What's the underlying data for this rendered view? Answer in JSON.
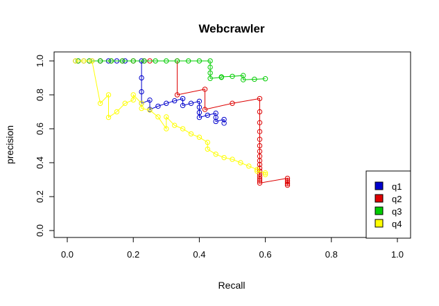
{
  "chart_data": {
    "type": "line",
    "title": "Webcrawler",
    "xlabel": "Recall",
    "ylabel": "precision",
    "xlim": [
      0,
      1
    ],
    "ylim": [
      0,
      1
    ],
    "xticks": [
      "0.0",
      "0.2",
      "0.4",
      "0.6",
      "0.8",
      "1.0"
    ],
    "yticks": [
      "0.0",
      "0.2",
      "0.4",
      "0.6",
      "0.8",
      "1.0"
    ],
    "grid": false,
    "legend_position": "bottom-right",
    "series": [
      {
        "name": "q1",
        "color": "#0000CC",
        "points": [
          [
            0.025,
            1.0
          ],
          [
            0.05,
            1.0
          ],
          [
            0.075,
            1.0
          ],
          [
            0.1,
            1.0
          ],
          [
            0.125,
            1.0
          ],
          [
            0.15,
            1.0
          ],
          [
            0.175,
            1.0
          ],
          [
            0.225,
            1.0
          ],
          [
            0.225,
            0.9
          ],
          [
            0.225,
            0.818
          ],
          [
            0.225,
            0.75
          ],
          [
            0.25,
            0.769
          ],
          [
            0.25,
            0.714
          ],
          [
            0.275,
            0.733
          ],
          [
            0.3,
            0.75
          ],
          [
            0.325,
            0.765
          ],
          [
            0.35,
            0.778
          ],
          [
            0.35,
            0.737
          ],
          [
            0.375,
            0.75
          ],
          [
            0.4,
            0.762
          ],
          [
            0.4,
            0.727
          ],
          [
            0.4,
            0.696
          ],
          [
            0.4,
            0.667
          ],
          [
            0.425,
            0.68
          ],
          [
            0.45,
            0.692
          ],
          [
            0.45,
            0.667
          ],
          [
            0.45,
            0.643
          ],
          [
            0.475,
            0.655
          ],
          [
            0.475,
            0.633
          ]
        ]
      },
      {
        "name": "q2",
        "color": "#DD0000",
        "points": [
          [
            0.033,
            1.0
          ],
          [
            0.067,
            1.0
          ],
          [
            0.1,
            1.0
          ],
          [
            0.133,
            1.0
          ],
          [
            0.167,
            1.0
          ],
          [
            0.2,
            1.0
          ],
          [
            0.233,
            1.0
          ],
          [
            0.25,
            1.0
          ],
          [
            0.333,
            1.0
          ],
          [
            0.333,
            0.8
          ],
          [
            0.417,
            0.833
          ],
          [
            0.417,
            0.714
          ],
          [
            0.5,
            0.75
          ],
          [
            0.583,
            0.778
          ],
          [
            0.583,
            0.7
          ],
          [
            0.583,
            0.636
          ],
          [
            0.583,
            0.583
          ],
          [
            0.583,
            0.538
          ],
          [
            0.583,
            0.5
          ],
          [
            0.583,
            0.467
          ],
          [
            0.583,
            0.438
          ],
          [
            0.583,
            0.412
          ],
          [
            0.583,
            0.389
          ],
          [
            0.583,
            0.368
          ],
          [
            0.583,
            0.35
          ],
          [
            0.583,
            0.333
          ],
          [
            0.583,
            0.318
          ],
          [
            0.583,
            0.304
          ],
          [
            0.583,
            0.292
          ],
          [
            0.583,
            0.28
          ],
          [
            0.667,
            0.308
          ],
          [
            0.667,
            0.296
          ],
          [
            0.667,
            0.286
          ],
          [
            0.667,
            0.276
          ],
          [
            0.667,
            0.267
          ]
        ]
      },
      {
        "name": "q3",
        "color": "#00CC00",
        "points": [
          [
            0.033,
            1.0
          ],
          [
            0.067,
            1.0
          ],
          [
            0.1,
            1.0
          ],
          [
            0.133,
            1.0
          ],
          [
            0.167,
            1.0
          ],
          [
            0.2,
            1.0
          ],
          [
            0.233,
            1.0
          ],
          [
            0.267,
            1.0
          ],
          [
            0.3,
            1.0
          ],
          [
            0.333,
            1.0
          ],
          [
            0.367,
            1.0
          ],
          [
            0.4,
            1.0
          ],
          [
            0.433,
            1.0
          ],
          [
            0.433,
            0.963
          ],
          [
            0.433,
            0.929
          ],
          [
            0.433,
            0.897
          ],
          [
            0.467,
            0.903
          ],
          [
            0.467,
            0.906
          ],
          [
            0.5,
            0.909
          ],
          [
            0.533,
            0.914
          ],
          [
            0.533,
            0.889
          ],
          [
            0.567,
            0.892
          ],
          [
            0.6,
            0.895
          ]
        ]
      },
      {
        "name": "q4",
        "color": "#FFFF00",
        "points": [
          [
            0.025,
            1.0
          ],
          [
            0.05,
            1.0
          ],
          [
            0.075,
            1.0
          ],
          [
            0.1,
            0.75
          ],
          [
            0.125,
            0.8
          ],
          [
            0.125,
            0.667
          ],
          [
            0.15,
            0.7
          ],
          [
            0.175,
            0.75
          ],
          [
            0.2,
            0.77
          ],
          [
            0.2,
            0.8
          ],
          [
            0.225,
            0.75
          ],
          [
            0.225,
            0.72
          ],
          [
            0.25,
            0.71
          ],
          [
            0.275,
            0.67
          ],
          [
            0.3,
            0.6
          ],
          [
            0.3,
            0.67
          ],
          [
            0.325,
            0.62
          ],
          [
            0.35,
            0.6
          ],
          [
            0.375,
            0.57
          ],
          [
            0.4,
            0.55
          ],
          [
            0.425,
            0.52
          ],
          [
            0.425,
            0.48
          ],
          [
            0.45,
            0.45
          ],
          [
            0.475,
            0.43
          ],
          [
            0.5,
            0.42
          ],
          [
            0.525,
            0.4
          ],
          [
            0.55,
            0.38
          ],
          [
            0.575,
            0.36
          ],
          [
            0.575,
            0.35
          ],
          [
            0.6,
            0.34
          ],
          [
            0.6,
            0.33
          ]
        ]
      }
    ]
  }
}
